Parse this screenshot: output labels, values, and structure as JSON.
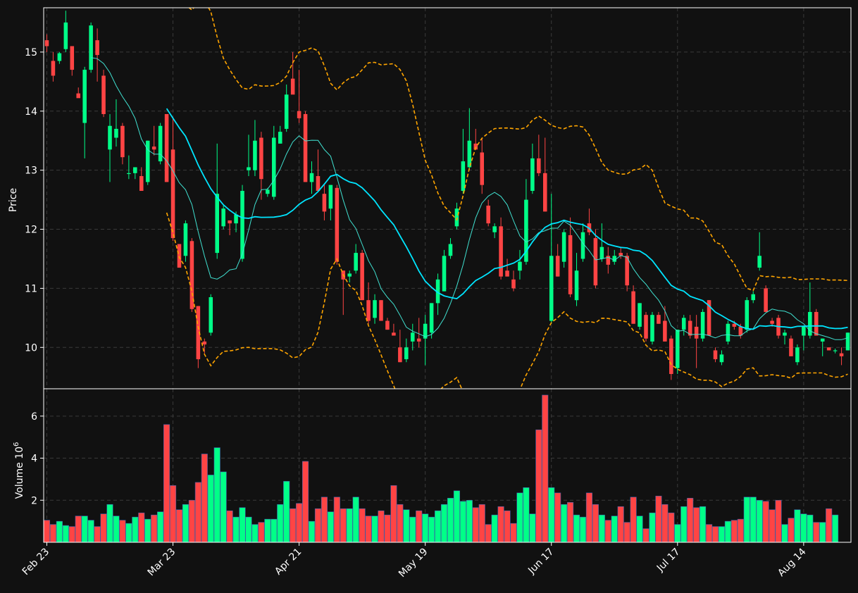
{
  "colors": {
    "background": "#111111",
    "up": "#00ff88",
    "down": "#ff4444",
    "ma_fast": "#40e0d0",
    "ma_slow": "#00e5ff",
    "band": "#ffa500",
    "grid": "#3a3a3a",
    "frame": "#ffffff"
  },
  "chart_data": {
    "type": "candlestick",
    "x_tick_labels": [
      {
        "label": "Feb 23",
        "index": 0
      },
      {
        "label": "Mar 23",
        "index": 20
      },
      {
        "label": "Apr 21",
        "index": 40
      },
      {
        "label": "May 19",
        "index": 60
      },
      {
        "label": "Jun 17",
        "index": 80
      },
      {
        "label": "Jul 17",
        "index": 100
      },
      {
        "label": "Aug 14",
        "index": 120
      }
    ],
    "price_panel": {
      "ylabel": "Price",
      "ylim": [
        9.3,
        15.75
      ],
      "yticks": [
        10,
        11,
        12,
        13,
        14,
        15
      ],
      "grid": true
    },
    "volume_panel": {
      "ylabel": "Volume  10",
      "ylabel_exponent": "6",
      "ylim": [
        0,
        7.3
      ],
      "yticks": [
        2,
        4,
        6
      ],
      "grid": true
    },
    "ohlc": [
      [
        15.2,
        15.3,
        15.0,
        15.1
      ],
      [
        14.85,
        15.0,
        14.5,
        14.6
      ],
      [
        14.85,
        15.0,
        14.8,
        14.98
      ],
      [
        15.05,
        15.7,
        15.0,
        15.5
      ],
      [
        15.1,
        15.1,
        14.6,
        14.7
      ],
      [
        14.3,
        14.4,
        14.25,
        14.22
      ],
      [
        13.8,
        14.75,
        13.2,
        14.7
      ],
      [
        14.7,
        15.5,
        14.65,
        15.45
      ],
      [
        15.2,
        15.4,
        14.5,
        14.95
      ],
      [
        14.6,
        14.7,
        13.9,
        13.95
      ],
      [
        13.35,
        13.95,
        12.8,
        13.75
      ],
      [
        13.55,
        14.2,
        13.4,
        13.7
      ],
      [
        13.75,
        13.8,
        13.1,
        13.22
      ],
      [
        12.95,
        13.25,
        12.85,
        12.95
      ],
      [
        12.95,
        13.05,
        12.85,
        13.05
      ],
      [
        12.9,
        13.05,
        12.65,
        12.65
      ],
      [
        12.8,
        13.5,
        12.75,
        13.5
      ],
      [
        13.4,
        13.75,
        13.25,
        13.35
      ],
      [
        13.15,
        13.8,
        13.1,
        13.75
      ],
      [
        13.95,
        13.95,
        12.8,
        12.8
      ],
      [
        13.35,
        13.9,
        11.8,
        11.85
      ],
      [
        11.75,
        11.75,
        11.35,
        11.35
      ],
      [
        11.55,
        12.15,
        11.45,
        12.1
      ],
      [
        11.8,
        11.85,
        10.6,
        10.65
      ],
      [
        10.7,
        10.7,
        9.65,
        9.8
      ],
      [
        10.1,
        10.15,
        9.9,
        10.05
      ],
      [
        10.25,
        10.9,
        10.2,
        10.85
      ],
      [
        11.6,
        13.45,
        11.5,
        12.6
      ],
      [
        12.05,
        12.4,
        12.0,
        12.35
      ],
      [
        12.15,
        12.15,
        11.9,
        12.1
      ],
      [
        12.1,
        12.3,
        11.95,
        12.25
      ],
      [
        11.5,
        12.75,
        11.45,
        12.65
      ],
      [
        13.0,
        13.6,
        12.9,
        13.05
      ],
      [
        13.0,
        13.85,
        12.9,
        13.5
      ],
      [
        13.55,
        13.65,
        12.5,
        12.85
      ],
      [
        12.6,
        12.7,
        12.55,
        12.67
      ],
      [
        12.55,
        13.75,
        12.5,
        13.55
      ],
      [
        13.45,
        13.75,
        13.45,
        13.65
      ],
      [
        13.7,
        14.45,
        13.65,
        14.28
      ],
      [
        14.55,
        15.0,
        14.3,
        14.28
      ],
      [
        14.0,
        14.7,
        13.8,
        13.88
      ],
      [
        13.95,
        14.0,
        12.8,
        12.8
      ],
      [
        12.8,
        13.15,
        12.6,
        12.95
      ],
      [
        12.9,
        13.35,
        12.65,
        12.65
      ],
      [
        12.6,
        12.75,
        12.15,
        12.3
      ],
      [
        12.35,
        12.75,
        12.15,
        12.75
      ],
      [
        12.7,
        12.75,
        11.4,
        11.45
      ],
      [
        11.3,
        11.3,
        10.55,
        11.15
      ],
      [
        11.2,
        11.3,
        11.1,
        11.25
      ],
      [
        11.3,
        11.75,
        11.25,
        11.6
      ],
      [
        11.6,
        11.65,
        10.8,
        10.8
      ],
      [
        10.8,
        11.1,
        10.4,
        10.45
      ],
      [
        10.5,
        10.9,
        10.4,
        10.8
      ],
      [
        10.8,
        10.8,
        10.45,
        10.45
      ],
      [
        10.45,
        10.5,
        10.3,
        10.3
      ],
      [
        10.25,
        10.4,
        10.2,
        10.2
      ],
      [
        10.0,
        10.3,
        9.75,
        9.75
      ],
      [
        9.8,
        10.15,
        9.75,
        10.0
      ],
      [
        10.1,
        10.4,
        9.95,
        10.25
      ],
      [
        10.15,
        10.5,
        10.0,
        10.1
      ],
      [
        10.15,
        10.55,
        9.7,
        10.4
      ],
      [
        10.25,
        10.75,
        10.15,
        10.75
      ],
      [
        10.75,
        11.25,
        10.55,
        11.15
      ],
      [
        10.95,
        11.65,
        10.95,
        11.55
      ],
      [
        11.55,
        11.85,
        11.5,
        11.75
      ],
      [
        12.05,
        12.45,
        12.0,
        12.35
      ],
      [
        12.65,
        13.7,
        12.6,
        13.15
      ],
      [
        13.05,
        14.05,
        13.0,
        13.5
      ],
      [
        13.45,
        13.7,
        13.35,
        13.35
      ],
      [
        13.3,
        13.55,
        12.6,
        12.75
      ],
      [
        12.4,
        12.5,
        12.05,
        12.1
      ],
      [
        11.95,
        12.1,
        11.85,
        12.05
      ],
      [
        12.05,
        12.2,
        11.15,
        11.2
      ],
      [
        11.3,
        11.5,
        11.2,
        11.2
      ],
      [
        11.15,
        11.3,
        10.95,
        11.0
      ],
      [
        11.3,
        11.65,
        11.15,
        11.45
      ],
      [
        11.45,
        12.85,
        11.4,
        12.5
      ],
      [
        12.65,
        13.45,
        12.6,
        13.2
      ],
      [
        13.2,
        13.6,
        12.9,
        12.95
      ],
      [
        12.95,
        13.55,
        12.3,
        12.3
      ],
      [
        10.45,
        12.6,
        10.4,
        11.55
      ],
      [
        11.55,
        11.75,
        11.2,
        11.2
      ],
      [
        11.45,
        12.0,
        11.35,
        11.95
      ],
      [
        11.9,
        12.2,
        10.85,
        10.9
      ],
      [
        10.8,
        11.6,
        10.7,
        11.3
      ],
      [
        11.5,
        12.1,
        11.45,
        11.95
      ],
      [
        12.1,
        12.35,
        11.9,
        11.95
      ],
      [
        11.85,
        12.0,
        11.0,
        11.05
      ],
      [
        11.5,
        12.1,
        11.45,
        11.7
      ],
      [
        11.55,
        11.7,
        11.25,
        11.4
      ],
      [
        11.45,
        11.65,
        11.4,
        11.55
      ],
      [
        11.6,
        11.7,
        11.5,
        11.55
      ],
      [
        11.55,
        11.6,
        10.95,
        11.05
      ],
      [
        10.95,
        11.05,
        10.4,
        10.4
      ],
      [
        10.35,
        10.75,
        10.3,
        10.75
      ],
      [
        10.55,
        10.6,
        10.1,
        10.15
      ],
      [
        10.1,
        10.6,
        10.05,
        10.55
      ],
      [
        10.55,
        10.6,
        10.4,
        10.4
      ],
      [
        10.45,
        10.7,
        10.1,
        10.1
      ],
      [
        10.15,
        10.2,
        9.45,
        9.55
      ],
      [
        9.65,
        10.3,
        9.55,
        10.3
      ],
      [
        10.3,
        10.55,
        10.2,
        10.5
      ],
      [
        10.45,
        10.55,
        10.15,
        10.2
      ],
      [
        10.35,
        10.55,
        9.65,
        10.15
      ],
      [
        10.15,
        10.65,
        10.1,
        10.6
      ],
      [
        10.8,
        10.8,
        10.2,
        10.2
      ],
      [
        9.95,
        10.0,
        9.75,
        9.8
      ],
      [
        9.75,
        9.95,
        9.7,
        9.88
      ],
      [
        10.1,
        10.45,
        10.05,
        10.4
      ],
      [
        10.4,
        10.45,
        10.3,
        10.35
      ],
      [
        10.35,
        10.4,
        10.15,
        10.2
      ],
      [
        10.3,
        10.85,
        10.25,
        10.8
      ],
      [
        10.8,
        10.95,
        10.75,
        10.9
      ],
      [
        11.35,
        11.95,
        11.3,
        11.55
      ],
      [
        11.0,
        11.05,
        10.6,
        10.6
      ],
      [
        10.45,
        10.5,
        10.35,
        10.4
      ],
      [
        10.5,
        10.55,
        10.15,
        10.2
      ],
      [
        10.2,
        10.3,
        10.05,
        10.25
      ],
      [
        10.15,
        10.2,
        9.85,
        9.85
      ],
      [
        9.75,
        10.05,
        9.7,
        10.0
      ],
      [
        10.2,
        10.35,
        9.95,
        10.35
      ],
      [
        10.2,
        11.1,
        10.15,
        10.6
      ],
      [
        10.6,
        10.65,
        10.2,
        10.2
      ],
      [
        10.1,
        10.15,
        9.85,
        10.15
      ],
      [
        10.0,
        10.0,
        9.95,
        9.95
      ],
      [
        9.95,
        9.98,
        9.9,
        9.95
      ],
      [
        9.9,
        10.0,
        9.7,
        9.85
      ],
      [
        9.95,
        10.25,
        9.95,
        10.25
      ]
    ],
    "volume": [
      1.05,
      0.85,
      1.0,
      0.8,
      0.75,
      1.25,
      1.25,
      1.05,
      0.75,
      1.35,
      1.8,
      1.25,
      1.05,
      0.9,
      1.2,
      1.4,
      1.1,
      1.3,
      1.45,
      5.6,
      2.7,
      1.55,
      1.8,
      2.0,
      2.85,
      4.2,
      3.2,
      4.5,
      3.35,
      1.5,
      1.2,
      1.65,
      1.2,
      0.85,
      0.95,
      1.1,
      1.1,
      1.8,
      2.9,
      1.6,
      1.85,
      3.85,
      1.0,
      1.6,
      2.15,
      1.45,
      2.15,
      1.6,
      1.6,
      2.15,
      1.6,
      1.25,
      1.25,
      1.5,
      1.3,
      2.7,
      1.8,
      1.55,
      1.2,
      1.5,
      1.35,
      1.2,
      1.5,
      1.8,
      2.1,
      2.45,
      1.95,
      2.0,
      1.65,
      1.8,
      0.85,
      1.3,
      1.7,
      1.5,
      0.9,
      2.35,
      2.6,
      1.35,
      5.35,
      7.0,
      2.6,
      2.35,
      1.8,
      1.9,
      1.3,
      1.2,
      2.35,
      1.8,
      1.3,
      1.05,
      1.25,
      1.7,
      0.95,
      2.15,
      1.25,
      0.65,
      1.4,
      2.2,
      1.8,
      1.4,
      0.85,
      1.7,
      2.1,
      1.65,
      1.7,
      0.85,
      0.75,
      0.75,
      1.0,
      1.05,
      1.1,
      2.15,
      2.15,
      2.0,
      1.95,
      1.55,
      2.0,
      0.85,
      1.15,
      1.55,
      1.35,
      1.3,
      0.95,
      0.95,
      1.6,
      1.3
    ]
  }
}
